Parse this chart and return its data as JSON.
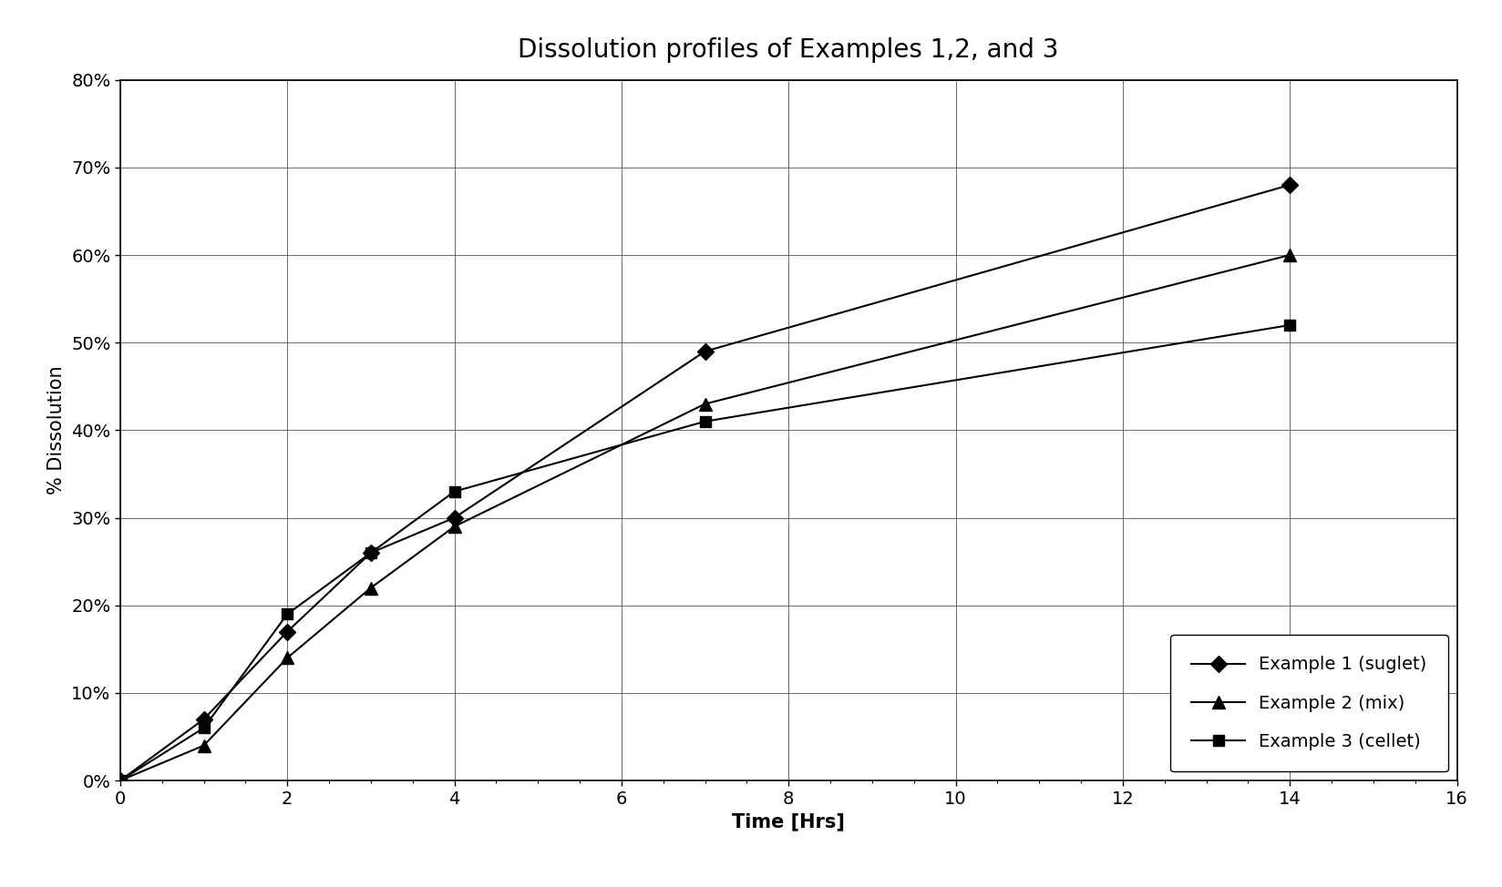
{
  "title": "Dissolution profiles of Examples 1,2, and 3",
  "xlabel": "Time [Hrs]",
  "ylabel": "% Dissolution",
  "xlim": [
    0,
    16
  ],
  "ylim": [
    0,
    0.8
  ],
  "xticks": [
    0,
    2,
    4,
    6,
    8,
    10,
    12,
    14,
    16
  ],
  "yticks": [
    0.0,
    0.1,
    0.2,
    0.3,
    0.4,
    0.5,
    0.6,
    0.7,
    0.8
  ],
  "series": [
    {
      "label": "Example 1 (suglet)",
      "x": [
        0,
        1,
        2,
        3,
        4,
        7,
        14
      ],
      "y": [
        0,
        0.07,
        0.17,
        0.26,
        0.3,
        0.49,
        0.68
      ],
      "color": "#000000",
      "marker": "D",
      "markersize": 9,
      "linewidth": 1.5
    },
    {
      "label": "Example 2 (mix)",
      "x": [
        0,
        1,
        2,
        3,
        4,
        7,
        14
      ],
      "y": [
        0,
        0.04,
        0.14,
        0.22,
        0.29,
        0.43,
        0.6
      ],
      "color": "#000000",
      "marker": "^",
      "markersize": 10,
      "linewidth": 1.5
    },
    {
      "label": "Example 3 (cellet)",
      "x": [
        0,
        1,
        2,
        3,
        4,
        7,
        14
      ],
      "y": [
        0,
        0.06,
        0.19,
        0.26,
        0.33,
        0.41,
        0.52
      ],
      "color": "#000000",
      "marker": "s",
      "markersize": 9,
      "linewidth": 1.5
    }
  ],
  "background_color": "#ffffff",
  "plot_background": "#ffffff",
  "title_fontsize": 20,
  "axis_label_fontsize": 15,
  "tick_fontsize": 14,
  "legend_fontsize": 14
}
